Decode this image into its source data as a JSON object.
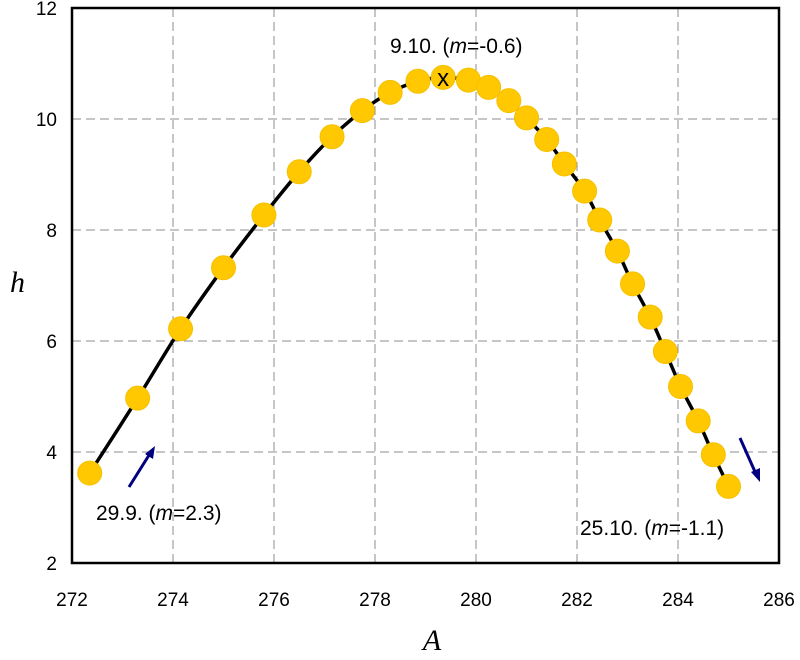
{
  "chart_data": {
    "type": "scatter",
    "xlabel": "A",
    "ylabel": "h",
    "xlim": [
      272,
      286
    ],
    "ylim": [
      2,
      12
    ],
    "x_ticks": [
      "272",
      "274",
      "276",
      "278",
      "280",
      "282",
      "284",
      "286"
    ],
    "y_ticks": [
      "2",
      "4",
      "6",
      "8",
      "10",
      "12"
    ],
    "grid": true,
    "colors": {
      "points": "#ffc800",
      "line": "#000000",
      "arrows": "#000080"
    },
    "series": [
      {
        "x": [
          272.35,
          273.3,
          274.15,
          275.0,
          275.8,
          276.5,
          277.15,
          277.75,
          278.3,
          278.85,
          279.35,
          279.85,
          280.25,
          280.65,
          281.0,
          281.4,
          281.75,
          282.15,
          282.45,
          282.8,
          283.1,
          283.45,
          283.75,
          284.05,
          284.4,
          284.7,
          285.0
        ],
        "y": [
          3.62,
          4.97,
          6.22,
          7.32,
          8.27,
          9.05,
          9.68,
          10.15,
          10.48,
          10.68,
          10.75,
          10.7,
          10.57,
          10.33,
          10.02,
          9.63,
          9.19,
          8.7,
          8.18,
          7.62,
          7.03,
          6.43,
          5.81,
          5.18,
          4.56,
          3.95,
          3.38
        ]
      }
    ],
    "annotations": [
      {
        "date": "29.9.",
        "open": " (",
        "m": "m",
        "value": "=2.3)",
        "x": 272.35,
        "y": 3.62
      },
      {
        "date": "9.10.",
        "open": " (",
        "m": "m",
        "value": "=-0.6)",
        "x": 279.35,
        "y": 10.75
      },
      {
        "date": "25.10.",
        "open": " (",
        "m": "m",
        "value": "=-1.1)",
        "x": 285.0,
        "y": 3.38
      }
    ],
    "peak_marker": "x"
  }
}
